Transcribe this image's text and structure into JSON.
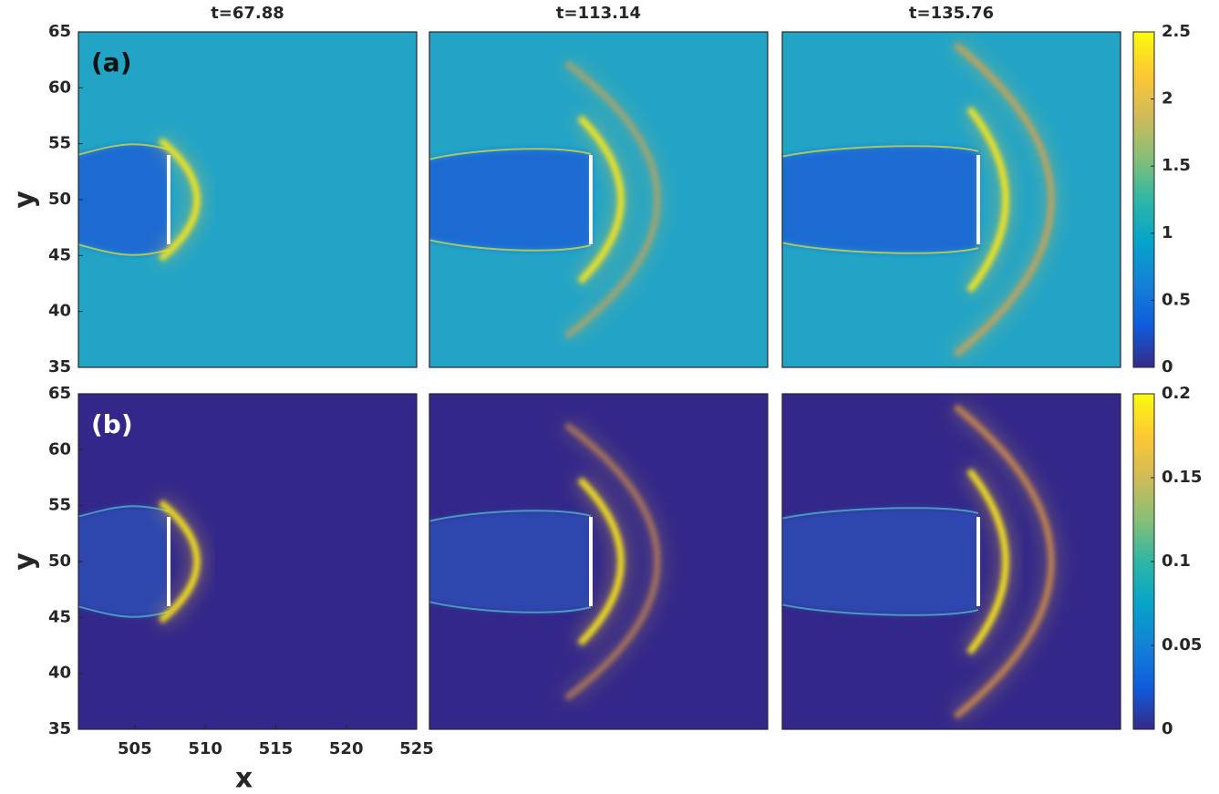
{
  "chart_data": [
    {
      "type": "heatmap",
      "title": "t=67.88",
      "panel_label": "(a)",
      "ylabel": "y",
      "ylim": [
        35,
        65
      ],
      "yticks": [
        35,
        40,
        45,
        50,
        55,
        60,
        65
      ]
    },
    {
      "type": "heatmap",
      "title": "t=113.14"
    },
    {
      "type": "heatmap",
      "title": "t=135.76",
      "colorbar": {
        "clim": [
          0,
          2.5
        ],
        "ticks": [
          0,
          0.5,
          1,
          1.5,
          2,
          2.5
        ],
        "colors": [
          "#352a87",
          "#0f5cdd",
          "#1481d6",
          "#06a4ca",
          "#2eb7a4",
          "#87bf77",
          "#d1bb59",
          "#fec832",
          "#f9fb0e"
        ]
      }
    },
    {
      "type": "heatmap",
      "panel_label": "(b)",
      "xlabel": "x",
      "ylabel": "y",
      "xlim": [
        501,
        525
      ],
      "xticks": [
        505,
        510,
        515,
        520,
        525
      ],
      "ylim": [
        35,
        65
      ],
      "yticks": [
        35,
        40,
        45,
        50,
        55,
        60,
        65
      ]
    },
    {
      "type": "heatmap"
    },
    {
      "type": "heatmap",
      "colorbar": {
        "clim": [
          0,
          0.2
        ],
        "ticks": [
          0,
          0.05,
          0.1,
          0.15,
          0.2
        ],
        "colors": [
          "#352a87",
          "#0f5cdd",
          "#1481d6",
          "#06a4ca",
          "#2eb7a4",
          "#87bf77",
          "#d1bb59",
          "#fec832",
          "#f9fb0e"
        ]
      }
    }
  ]
}
